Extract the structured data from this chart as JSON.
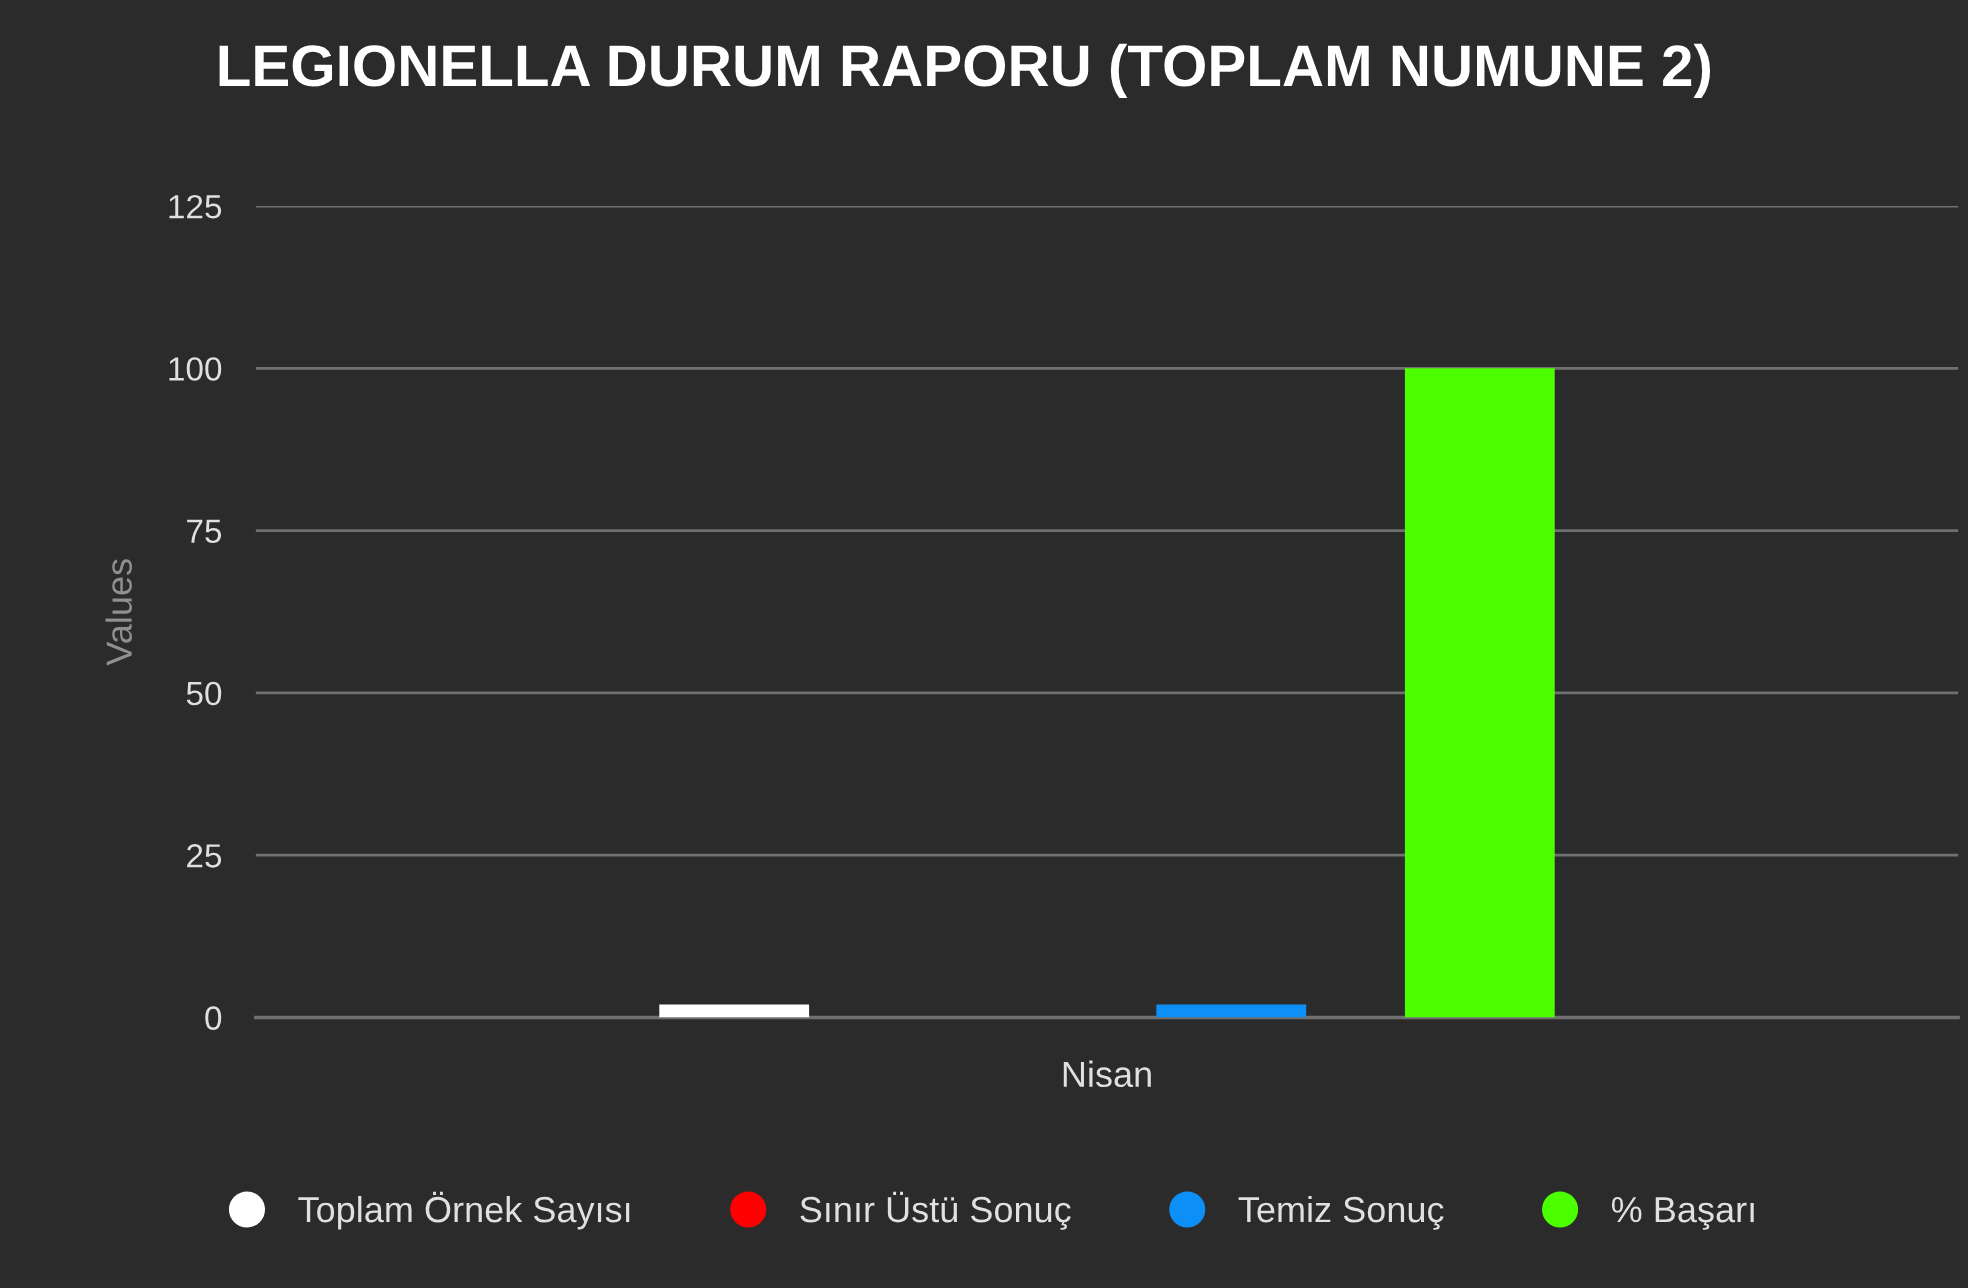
{
  "chart_data": {
    "type": "bar",
    "title": "LEGIONELLA DURUM RAPORU (TOPLAM NUMUNE 2)",
    "xlabel": "Nisan",
    "ylabel": "Values",
    "categories": [
      null
    ],
    "series": [
      {
        "name": "Toplam Örnek Sayısı",
        "color": "#ffffff",
        "values": [
          2
        ]
      },
      {
        "name": "Sınır Üstü Sonuç",
        "color": "#ff0000",
        "values": [
          0
        ]
      },
      {
        "name": "Temiz Sonuç",
        "color": "#0d8ff8",
        "values": [
          2
        ]
      },
      {
        "name": "% Başarı",
        "color": "#4cff00",
        "values": [
          100
        ]
      }
    ],
    "ylim": [
      0,
      125
    ],
    "yticks": [
      0,
      25,
      50,
      75,
      100,
      125
    ],
    "grid": "y",
    "legend": "bottom"
  }
}
